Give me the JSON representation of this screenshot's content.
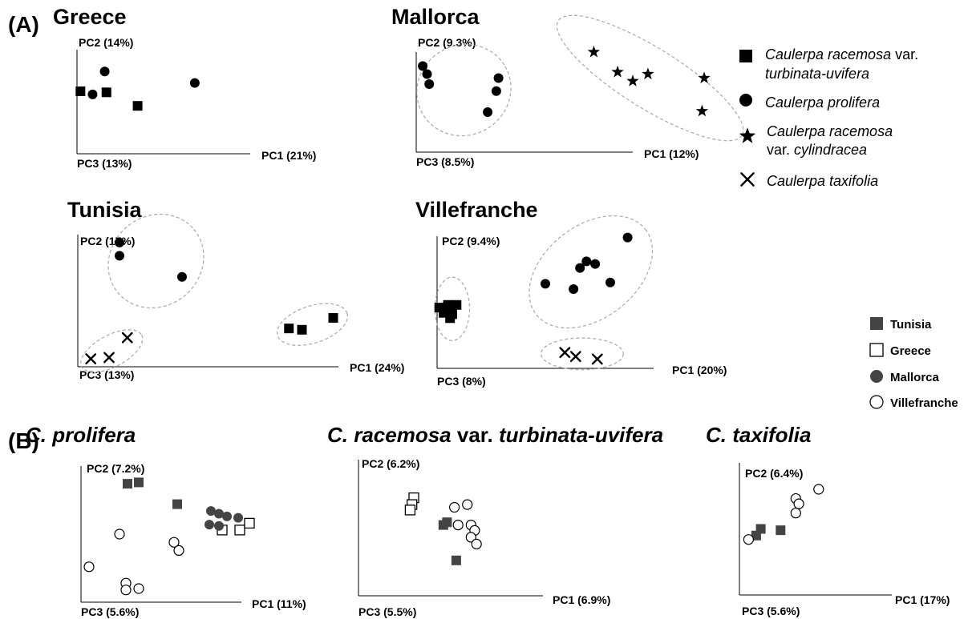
{
  "figure": {
    "panel_a_label": "(A)",
    "panel_b_label": "(B)"
  },
  "colors": {
    "black": "#000000",
    "dark_gray": "#444444",
    "open_fill": "#ffffff",
    "ellipse": "#a8a8a8"
  },
  "species_legend": {
    "items": [
      {
        "marker": "filled-square",
        "lines": [
          [
            {
              "t": "Caulerpa racemosa",
              "it": true
            },
            {
              "t": " var.",
              "it": false
            }
          ],
          [
            {
              "t": "turbinata-uvifera",
              "it": true
            }
          ]
        ]
      },
      {
        "marker": "filled-circle",
        "lines": [
          [
            {
              "t": "Caulerpa prolifera",
              "it": true
            }
          ]
        ]
      },
      {
        "marker": "filled-star",
        "lines": [
          [
            {
              "t": "Caulerpa racemosa",
              "it": true
            }
          ],
          [
            {
              "t": "var. ",
              "it": false
            },
            {
              "t": "cylindracea",
              "it": true
            }
          ]
        ]
      },
      {
        "marker": "cross",
        "lines": [
          [
            {
              "t": "Caulerpa taxifolia",
              "it": true
            }
          ]
        ]
      }
    ]
  },
  "site_legend": {
    "items": [
      {
        "marker": "gray-filled-square",
        "label": "Tunisia"
      },
      {
        "marker": "open-square",
        "label": "Greece"
      },
      {
        "marker": "gray-filled-circle",
        "label": "Mallorca"
      },
      {
        "marker": "open-circle",
        "label": "Villefranche"
      }
    ]
  },
  "chart_data": [
    {
      "type": "scatter",
      "panel": "A",
      "title": [
        {
          "t": "Greece",
          "it": false
        }
      ],
      "xlabel": "PC1 (21%)",
      "ylabel": "PC2 (14%)",
      "zlabel": "PC3 (13%)",
      "series": [
        {
          "marker": "filled-circle",
          "points": [
            [
              0.16,
              0.79
            ],
            [
              0.68,
              0.68
            ],
            [
              0.09,
              0.57
            ]
          ]
        },
        {
          "marker": "filled-square",
          "points": [
            [
              0.02,
              0.6
            ],
            [
              0.17,
              0.59
            ],
            [
              0.35,
              0.46
            ]
          ]
        }
      ],
      "ellipses": []
    },
    {
      "type": "scatter",
      "panel": "A",
      "title": [
        {
          "t": "Mallorca",
          "it": false
        }
      ],
      "xlabel": "PC1 (12%)",
      "ylabel": "PC2 (9.3%)",
      "zlabel": "PC3 (8.5%)",
      "series": [
        {
          "marker": "filled-circle",
          "points": [
            [
              0.03,
              0.86
            ],
            [
              0.05,
              0.78
            ],
            [
              0.06,
              0.68
            ],
            [
              0.38,
              0.74
            ],
            [
              0.37,
              0.61
            ],
            [
              0.33,
              0.4
            ]
          ]
        },
        {
          "marker": "filled-star",
          "points": [
            [
              0.82,
              1.0
            ],
            [
              0.93,
              0.8
            ],
            [
              1.07,
              0.78
            ],
            [
              1.0,
              0.71
            ],
            [
              1.33,
              0.74
            ],
            [
              1.32,
              0.41
            ]
          ]
        }
      ],
      "ellipses": [
        {
          "center": [
            0.22,
            0.62
          ],
          "radii": [
            0.22,
            0.45
          ],
          "angle": -30
        },
        {
          "center": [
            1.08,
            0.74
          ],
          "radii": [
            0.5,
            0.3
          ],
          "angle": 32
        }
      ]
    },
    {
      "type": "scatter",
      "panel": "A",
      "title": [
        {
          "t": "Tunisia",
          "it": false
        }
      ],
      "xlabel": "PC1 (24%)",
      "ylabel": "PC2 (17%)",
      "zlabel": "PC3 (13%)",
      "series": [
        {
          "marker": "filled-circle",
          "points": [
            [
              0.16,
              0.94
            ],
            [
              0.16,
              0.84
            ],
            [
              0.4,
              0.68
            ]
          ]
        },
        {
          "marker": "filled-square",
          "points": [
            [
              0.81,
              0.29
            ],
            [
              0.86,
              0.28
            ],
            [
              0.98,
              0.37
            ]
          ]
        },
        {
          "marker": "cross",
          "points": [
            [
              0.05,
              0.06
            ],
            [
              0.12,
              0.07
            ],
            [
              0.19,
              0.22
            ]
          ]
        }
      ],
      "ellipses": [
        {
          "center": [
            0.3,
            0.8
          ],
          "radii": [
            0.19,
            0.34
          ],
          "angle": -40
        },
        {
          "center": [
            0.9,
            0.32
          ],
          "radii": [
            0.14,
            0.14
          ],
          "angle": -18
        },
        {
          "center": [
            0.13,
            0.12
          ],
          "radii": [
            0.13,
            0.12
          ],
          "angle": -28
        }
      ]
    },
    {
      "type": "scatter",
      "panel": "A",
      "title": [
        {
          "t": "Villefranche",
          "it": false
        }
      ],
      "xlabel": "PC1 (20%)",
      "ylabel": "PC2 (9.4%)",
      "zlabel": "PC3 (8%)",
      "series": [
        {
          "marker": "filled-circle",
          "points": [
            [
              0.88,
              0.99
            ],
            [
              0.69,
              0.81
            ],
            [
              0.73,
              0.79
            ],
            [
              0.66,
              0.76
            ],
            [
              0.5,
              0.64
            ],
            [
              0.63,
              0.6
            ],
            [
              0.8,
              0.65
            ]
          ]
        },
        {
          "marker": "filled-square",
          "points": [
            [
              0.01,
              0.46
            ],
            [
              0.05,
              0.48
            ],
            [
              0.09,
              0.48
            ],
            [
              0.03,
              0.42
            ],
            [
              0.07,
              0.41
            ],
            [
              0.06,
              0.38
            ]
          ]
        },
        {
          "marker": "cross",
          "points": [
            [
              0.59,
              0.12
            ],
            [
              0.64,
              0.09
            ],
            [
              0.74,
              0.07
            ]
          ]
        }
      ],
      "ellipses": [
        {
          "center": [
            0.71,
            0.73
          ],
          "radii": [
            0.32,
            0.35
          ],
          "angle": -38
        },
        {
          "center": [
            0.07,
            0.45
          ],
          "radii": [
            0.08,
            0.24
          ],
          "angle": 0
        },
        {
          "center": [
            0.67,
            0.11
          ],
          "radii": [
            0.19,
            0.12
          ],
          "angle": 0
        }
      ]
    },
    {
      "type": "scatter",
      "panel": "B",
      "title": [
        {
          "t": "C. prolifera",
          "it": true
        }
      ],
      "xlabel": "PC1 (11%)",
      "ylabel": "PC2 (7.2%)",
      "zlabel": "PC3 (5.6%)",
      "series": [
        {
          "name": "Tunisia",
          "marker": "gray-filled-square",
          "points": [
            [
              0.29,
              0.87
            ],
            [
              0.36,
              0.88
            ],
            [
              0.6,
              0.72
            ]
          ]
        },
        {
          "name": "Greece",
          "marker": "open-square",
          "points": [
            [
              0.88,
              0.53
            ],
            [
              0.99,
              0.53
            ],
            [
              1.05,
              0.58
            ]
          ]
        },
        {
          "name": "Mallorca",
          "marker": "gray-filled-circle",
          "points": [
            [
              0.81,
              0.67
            ],
            [
              0.86,
              0.65
            ],
            [
              0.91,
              0.63
            ],
            [
              0.98,
              0.62
            ],
            [
              0.8,
              0.57
            ],
            [
              0.86,
              0.56
            ]
          ]
        },
        {
          "name": "Villefranche",
          "marker": "open-circle",
          "points": [
            [
              0.24,
              0.5
            ],
            [
              0.58,
              0.44
            ],
            [
              0.61,
              0.38
            ],
            [
              0.05,
              0.26
            ],
            [
              0.28,
              0.14
            ],
            [
              0.28,
              0.09
            ],
            [
              0.36,
              0.1
            ]
          ]
        }
      ],
      "ellipses": []
    },
    {
      "type": "scatter",
      "panel": "B",
      "title": [
        {
          "t": "C. racemosa",
          "it": true
        },
        {
          "t": " var. ",
          "it": false
        },
        {
          "t": "turbinata-uvifera",
          "it": true
        }
      ],
      "xlabel": "PC1 (6.9%)",
      "ylabel": "PC2 (6.2%)",
      "zlabel": "PC3 (5.5%)",
      "series": [
        {
          "name": "Tunisia",
          "marker": "gray-filled-square",
          "points": [
            [
              0.46,
              0.52
            ],
            [
              0.48,
              0.54
            ],
            [
              0.53,
              0.26
            ]
          ]
        },
        {
          "name": "Greece",
          "marker": "open-square",
          "points": [
            [
              0.3,
              0.72
            ],
            [
              0.29,
              0.67
            ],
            [
              0.28,
              0.63
            ]
          ]
        },
        {
          "name": "Villefranche",
          "marker": "open-circle",
          "points": [
            [
              0.52,
              0.65
            ],
            [
              0.59,
              0.67
            ],
            [
              0.54,
              0.52
            ],
            [
              0.61,
              0.52
            ],
            [
              0.63,
              0.48
            ],
            [
              0.61,
              0.43
            ],
            [
              0.64,
              0.38
            ]
          ]
        }
      ],
      "ellipses": []
    },
    {
      "type": "scatter",
      "panel": "B",
      "title": [
        {
          "t": "C. taxifolia",
          "it": true
        }
      ],
      "xlabel": "PC1 (17%)",
      "ylabel": "PC2 (6.4%)",
      "zlabel": "PC3 (5.6%)",
      "series": [
        {
          "name": "Tunisia",
          "marker": "gray-filled-square",
          "points": [
            [
              0.14,
              0.5
            ],
            [
              0.11,
              0.45
            ],
            [
              0.27,
              0.49
            ]
          ]
        },
        {
          "name": "Villefranche",
          "marker": "open-circle",
          "points": [
            [
              0.52,
              0.8
            ],
            [
              0.37,
              0.73
            ],
            [
              0.39,
              0.69
            ],
            [
              0.37,
              0.62
            ],
            [
              0.06,
              0.42
            ]
          ]
        }
      ],
      "ellipses": []
    }
  ]
}
